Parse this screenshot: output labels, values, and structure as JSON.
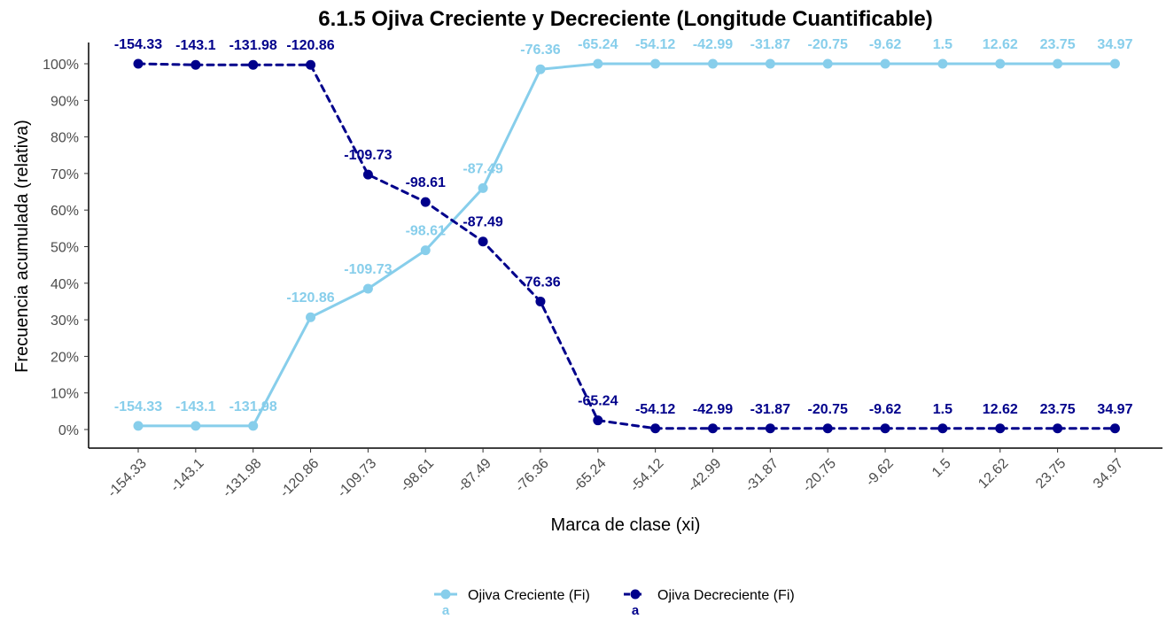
{
  "chart_data": {
    "type": "line",
    "title": "6.1.5 Ojiva Creciente y Decreciente (Longitude Cuantificable)",
    "xlabel": "Marca de clase (xi)",
    "ylabel": "Frecuencia acumulada (relativa)",
    "categories": [
      "-154.33",
      "-143.1",
      "-131.98",
      "-120.86",
      "-109.73",
      "-98.61",
      "-87.49",
      "-76.36",
      "-65.24",
      "-54.12",
      "-42.99",
      "-31.87",
      "-20.75",
      "-9.62",
      "1.5",
      "12.62",
      "23.75",
      "34.97"
    ],
    "ylim": [
      0,
      1
    ],
    "yticks": [
      "0%",
      "10%",
      "20%",
      "30%",
      "40%",
      "50%",
      "60%",
      "70%",
      "80%",
      "90%",
      "100%"
    ],
    "grid": false,
    "legend_position": "bottom",
    "legend_key_glyph": "a",
    "series": [
      {
        "name": "Ojiva Creciente (Fi)",
        "color": "#87CEEB",
        "line_style": "solid",
        "values": [
          0.01,
          0.01,
          0.01,
          0.307,
          0.385,
          0.49,
          0.66,
          0.985,
          1.0,
          1.0,
          1.0,
          1.0,
          1.0,
          1.0,
          1.0,
          1.0,
          1.0,
          1.0
        ],
        "labels": [
          "-154.33",
          "-143.1",
          "-131.98",
          "-120.86",
          "-109.73",
          "-98.61",
          "-87.49",
          "-76.36",
          "-65.24",
          "-54.12",
          "-42.99",
          "-31.87",
          "-20.75",
          "-9.62",
          "1.5",
          "12.62",
          "23.75",
          "34.97"
        ]
      },
      {
        "name": "Ojiva Decreciente (Fi)",
        "color": "#00008B",
        "line_style": "dashed",
        "values": [
          1.0,
          0.997,
          0.997,
          0.997,
          0.697,
          0.622,
          0.514,
          0.35,
          0.025,
          0.003,
          0.003,
          0.003,
          0.003,
          0.003,
          0.003,
          0.003,
          0.003,
          0.003
        ],
        "labels": [
          "-154.33",
          "-143.1",
          "-131.98",
          "-120.86",
          "-109.73",
          "-98.61",
          "-87.49",
          "-76.36",
          "-65.24",
          "-54.12",
          "-42.99",
          "-31.87",
          "-20.75",
          "-9.62",
          "1.5",
          "12.62",
          "23.75",
          "34.97"
        ]
      }
    ]
  }
}
